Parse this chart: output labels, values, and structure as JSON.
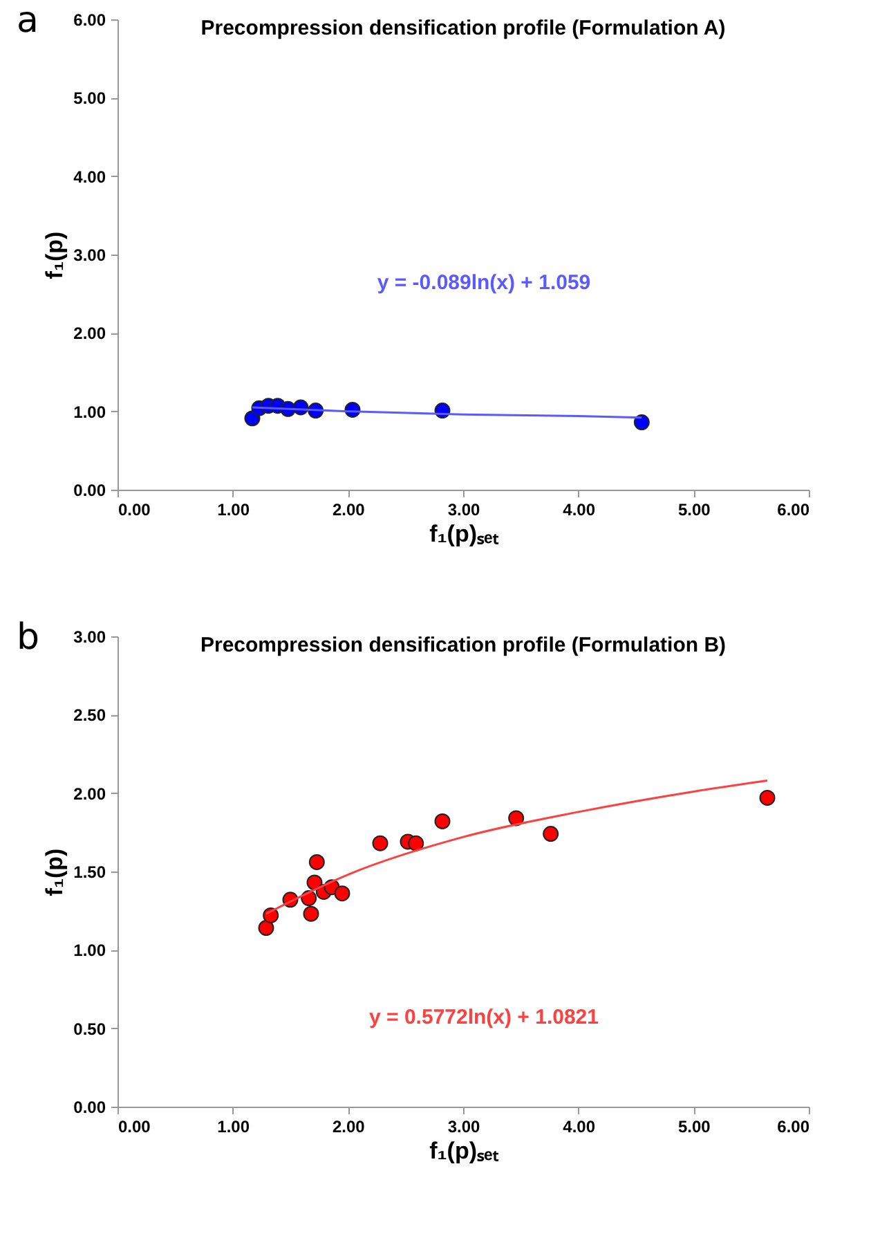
{
  "chart_data": [
    {
      "type": "scatter",
      "title": "Precompression densification profile (Formulation A)",
      "xlabel": "f₁(p)ₛₑₜ",
      "ylabel": "f₁(p)",
      "annotations": [
        "a",
        "y = -0.089ln(x) + 1.059"
      ],
      "series": [
        {
          "marker": "circle",
          "color": "#0000ff",
          "x": [
            1.17,
            1.23,
            1.31,
            1.39,
            1.48,
            1.59,
            1.72,
            2.04,
            2.82,
            4.55
          ],
          "values": [
            0.91,
            1.04,
            1.07,
            1.07,
            1.03,
            1.05,
            1.01,
            1.02,
            1.01,
            0.86
          ]
        },
        {
          "type": "line",
          "marker": "none",
          "line_style": "solid",
          "color": "#5a5aff",
          "x": [
            1.17,
            2,
            3,
            4,
            4.55
          ],
          "values": [
            1.05,
            1.0,
            0.96,
            0.94,
            0.92
          ]
        }
      ],
      "xlim": [
        0,
        6
      ],
      "ylim": [
        0,
        6
      ],
      "xticks": [
        {
          "value": 0,
          "label": "0.00"
        },
        {
          "value": 1,
          "label": "1.00"
        },
        {
          "value": 2,
          "label": "2.00"
        },
        {
          "value": 3,
          "label": "3.00"
        },
        {
          "value": 4,
          "label": "4.00"
        },
        {
          "value": 5,
          "label": "5.00"
        },
        {
          "value": 6,
          "label": "6.00"
        }
      ],
      "yticks": [
        {
          "value": 0,
          "label": "0.00"
        },
        {
          "value": 1,
          "label": "1.00"
        },
        {
          "value": 2,
          "label": "2.00"
        },
        {
          "value": 3,
          "label": "3.00"
        },
        {
          "value": 4,
          "label": "4.00"
        },
        {
          "value": 5,
          "label": "5.00"
        },
        {
          "value": 6,
          "label": "6.00"
        }
      ]
    },
    {
      "type": "scatter",
      "title": "Precompression densification profile (Formulation B)",
      "xlabel": "f₁(p)ₛₑₜ",
      "ylabel": "f₁(p)",
      "annotations": [
        "b",
        "y = 0.5772ln(x) + 1.0821"
      ],
      "series": [
        {
          "marker": "circle",
          "color": "#ff0000",
          "x": [
            1.29,
            1.33,
            1.5,
            1.66,
            1.68,
            1.71,
            1.73,
            1.79,
            1.86,
            1.95,
            2.28,
            2.52,
            2.59,
            2.82,
            3.46,
            3.76,
            5.64
          ],
          "values": [
            1.14,
            1.22,
            1.32,
            1.33,
            1.23,
            1.43,
            1.56,
            1.37,
            1.4,
            1.36,
            1.68,
            1.69,
            1.68,
            1.82,
            1.84,
            1.74,
            1.97
          ]
        },
        {
          "type": "line",
          "marker": "none",
          "line_style": "solid",
          "color": "#ff4040",
          "x": [
            1.29,
            2,
            3,
            4,
            5,
            5.64
          ],
          "values": [
            1.23,
            1.48,
            1.72,
            1.88,
            2.01,
            2.08
          ]
        }
      ],
      "xlim": [
        0,
        6
      ],
      "ylim": [
        0,
        3
      ],
      "xticks": [
        {
          "value": 0,
          "label": "0.00"
        },
        {
          "value": 1,
          "label": "1.00"
        },
        {
          "value": 2,
          "label": "2.00"
        },
        {
          "value": 3,
          "label": "3.00"
        },
        {
          "value": 4,
          "label": "4.00"
        },
        {
          "value": 5,
          "label": "5.00"
        },
        {
          "value": 6,
          "label": "6.00"
        }
      ],
      "yticks": [
        {
          "value": 0,
          "label": "0.00"
        },
        {
          "value": 0.5,
          "label": "0.50"
        },
        {
          "value": 1,
          "label": "1.00"
        },
        {
          "value": 1.5,
          "label": "1.50"
        },
        {
          "value": 2,
          "label": "2.00"
        },
        {
          "value": 2.5,
          "label": "2.50"
        },
        {
          "value": 3,
          "label": "3.00"
        }
      ]
    }
  ]
}
